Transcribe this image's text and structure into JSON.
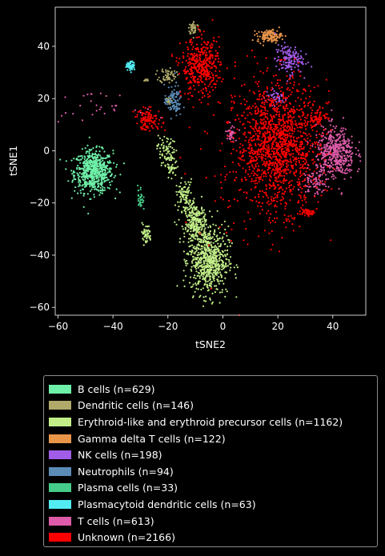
{
  "chart_data": {
    "type": "scatter",
    "xlabel": "tSNE2",
    "ylabel": "tSNE1",
    "xlim": [
      -61,
      52
    ],
    "ylim": [
      -63,
      55
    ],
    "xticks": [
      -60,
      -40,
      -20,
      0,
      20,
      40
    ],
    "yticks": [
      -60,
      -40,
      -20,
      0,
      20,
      40
    ],
    "grid": false,
    "legend_position": "below",
    "series": [
      {
        "name": "B cells (n=629)",
        "color": "#6ef0a8",
        "clusters": [
          {
            "cx": -47,
            "cy": -8,
            "sx": 3.5,
            "sy": 4.0,
            "n": 629
          }
        ]
      },
      {
        "name": "Dendritic cells (n=146)",
        "color": "#b0a96a",
        "clusters": [
          {
            "cx": -10.5,
            "cy": 47,
            "sx": 1.0,
            "sy": 1.3,
            "n": 50
          },
          {
            "cx": -20,
            "cy": 29,
            "sx": 1.5,
            "sy": 1.5,
            "n": 60
          },
          {
            "cx": -28,
            "cy": 27,
            "sx": 0.6,
            "sy": 0.3,
            "n": 10
          },
          {
            "cx": -20,
            "cy": 19,
            "sx": 0.6,
            "sy": 0.6,
            "n": 26
          }
        ]
      },
      {
        "name": "Erythroid-like and erythroid precursor cells (n=1162)",
        "color": "#c2ee88",
        "clusters": [
          {
            "cx": -21,
            "cy": 1,
            "sx": 1.5,
            "sy": 2.5,
            "n": 55
          },
          {
            "cx": -19,
            "cy": -6,
            "sx": 1.5,
            "sy": 3.0,
            "n": 55
          },
          {
            "cx": -14,
            "cy": -17,
            "sx": 1.5,
            "sy": 3.0,
            "n": 90
          },
          {
            "cx": -10,
            "cy": -28,
            "sx": 2.0,
            "sy": 4.0,
            "n": 260
          },
          {
            "cx": -5,
            "cy": -42,
            "sx": 3.5,
            "sy": 6.5,
            "n": 652
          },
          {
            "cx": -28,
            "cy": -32,
            "sx": 1.0,
            "sy": 2.0,
            "n": 50
          }
        ]
      },
      {
        "name": "Gamma delta T cells (n=122)",
        "color": "#e8954a",
        "clusters": [
          {
            "cx": 17,
            "cy": 44,
            "sx": 2.2,
            "sy": 1.2,
            "n": 122
          }
        ]
      },
      {
        "name": "NK cells (n=198)",
        "color": "#a25de8",
        "clusters": [
          {
            "cx": 24,
            "cy": 35,
            "sx": 2.5,
            "sy": 2.8,
            "n": 150
          },
          {
            "cx": 19.5,
            "cy": 20.5,
            "sx": 2.0,
            "sy": 1.5,
            "n": 48
          }
        ]
      },
      {
        "name": "Neutrophils (n=94)",
        "color": "#5b8cb8",
        "clusters": [
          {
            "cx": -18,
            "cy": 19,
            "sx": 1.6,
            "sy": 3.0,
            "n": 94
          }
        ]
      },
      {
        "name": "Plasma cells (n=33)",
        "color": "#45cc8a",
        "clusters": [
          {
            "cx": -30,
            "cy": -18,
            "sx": 0.5,
            "sy": 2.5,
            "n": 33
          }
        ]
      },
      {
        "name": "Plasmacytoid dendritic cells (n=63)",
        "color": "#52ecf2",
        "clusters": [
          {
            "cx": -33.5,
            "cy": 32.5,
            "sx": 0.8,
            "sy": 0.8,
            "n": 63
          }
        ]
      },
      {
        "name": "T cells (n=613)",
        "color": "#dd5ba8",
        "clusters": [
          {
            "cx": 41,
            "cy": -1,
            "sx": 3.5,
            "sy": 5.0,
            "n": 470
          },
          {
            "cx": 33,
            "cy": -12,
            "sx": 2.0,
            "sy": 2.5,
            "n": 73
          },
          {
            "cx": 3,
            "cy": 7,
            "sx": 1.0,
            "sy": 1.5,
            "n": 40
          },
          {
            "cx": -48,
            "cy": 17,
            "sx": 8.0,
            "sy": 2.5,
            "n": 30
          }
        ]
      },
      {
        "name": "Unknown (n=2166)",
        "color": "#ff0000",
        "clusters": [
          {
            "cx": 20,
            "cy": 2,
            "sx": 7.5,
            "sy": 12.0,
            "n": 1450
          },
          {
            "cx": -8,
            "cy": 32,
            "sx": 3.5,
            "sy": 5.5,
            "n": 420
          },
          {
            "cx": -27,
            "cy": 12,
            "sx": 2.5,
            "sy": 2.0,
            "n": 110
          },
          {
            "cx": 34.5,
            "cy": 13,
            "sx": 1.8,
            "sy": 1.5,
            "n": 60
          },
          {
            "cx": 31,
            "cy": -23.5,
            "sx": 1.2,
            "sy": 0.8,
            "n": 40
          },
          {
            "cx": 10,
            "cy": -10,
            "sx": 12.0,
            "sy": 18.0,
            "n": 86
          }
        ]
      }
    ]
  }
}
